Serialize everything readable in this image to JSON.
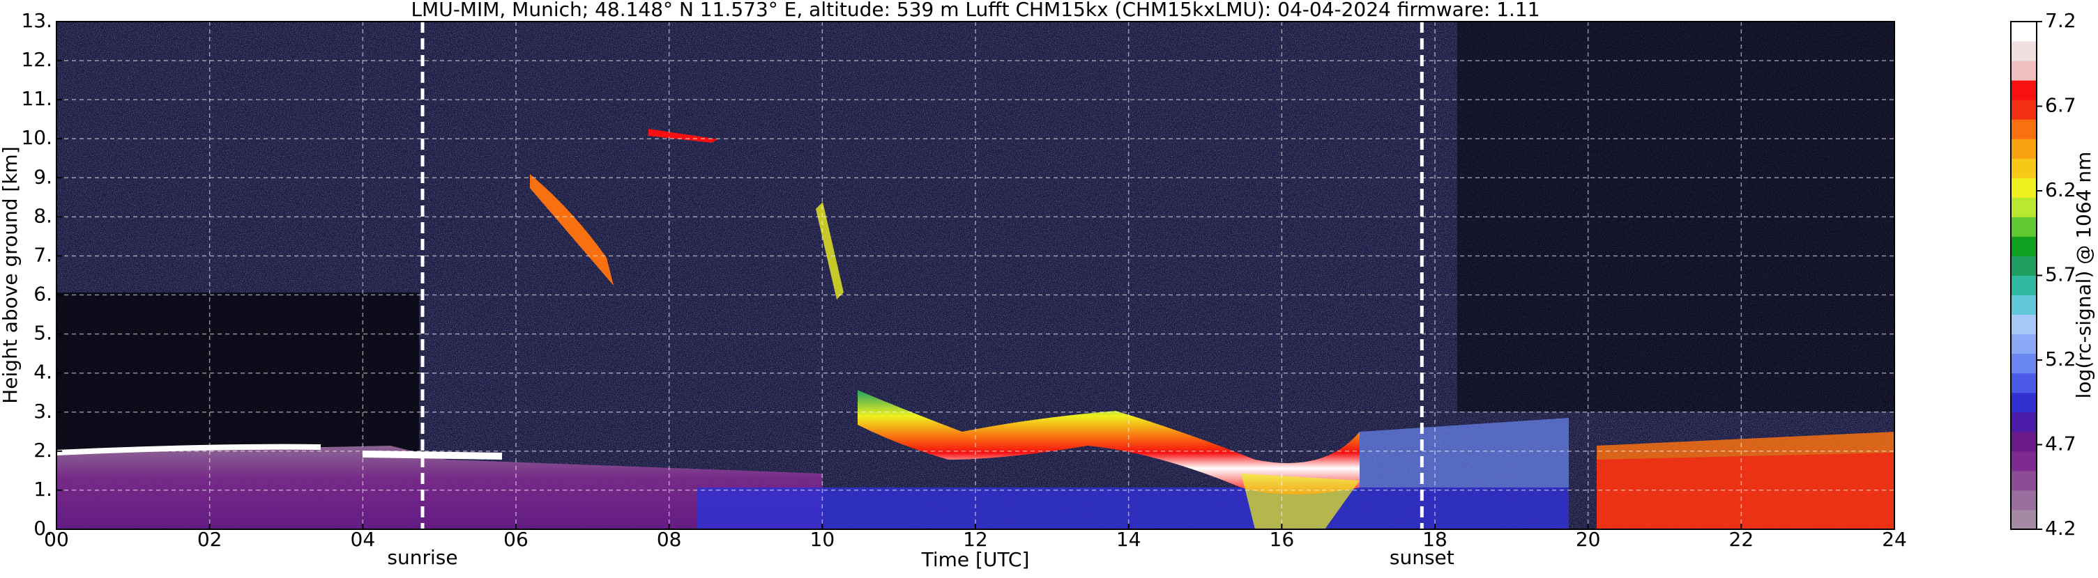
{
  "chart_data": {
    "type": "heatmap",
    "title": "LMU-MIM, Munich; 48.148° N 11.573° E, altitude: 539 m    Lufft CHM15kx (CHM15kxLMU): 04-04-2024    firmware: 1.11",
    "x_label": "Time [UTC]",
    "y_label": "Height above ground [km]",
    "xlim": [
      0,
      24
    ],
    "xticks": [
      {
        "value": 0,
        "label": "00"
      },
      {
        "value": 2,
        "label": "02"
      },
      {
        "value": 4,
        "label": "04"
      },
      {
        "value": 6,
        "label": "06"
      },
      {
        "value": 8,
        "label": "08"
      },
      {
        "value": 10,
        "label": "10"
      },
      {
        "value": 12,
        "label": "12"
      },
      {
        "value": 14,
        "label": "14"
      },
      {
        "value": 16,
        "label": "16"
      },
      {
        "value": 18,
        "label": "18"
      },
      {
        "value": 20,
        "label": "20"
      },
      {
        "value": 22,
        "label": "22"
      },
      {
        "value": 24,
        "label": "24"
      }
    ],
    "ylim": [
      0,
      13
    ],
    "yticks": [
      {
        "value": 0,
        "label": "0."
      },
      {
        "value": 1,
        "label": "1."
      },
      {
        "value": 2,
        "label": "2."
      },
      {
        "value": 3,
        "label": "3."
      },
      {
        "value": 4,
        "label": "4."
      },
      {
        "value": 5,
        "label": "5."
      },
      {
        "value": 6,
        "label": "6."
      },
      {
        "value": 7,
        "label": "7."
      },
      {
        "value": 8,
        "label": "8."
      },
      {
        "value": 9,
        "label": "9."
      },
      {
        "value": 10,
        "label": "10."
      },
      {
        "value": 11,
        "label": "11."
      },
      {
        "value": 12,
        "label": "12."
      },
      {
        "value": 13,
        "label": "13."
      }
    ],
    "grid": true,
    "annotations": [
      {
        "text": "sunrise",
        "x": 4.78
      },
      {
        "text": "sunset",
        "x": 17.83
      }
    ],
    "colorbar": {
      "label": "log(rc-signal) @ 1064 nm",
      "lim": [
        4.2,
        7.2
      ],
      "ticks": [
        4.2,
        4.7,
        5.2,
        5.7,
        6.2,
        6.7,
        7.2
      ],
      "colors": [
        "#a58aa5",
        "#9a6e9e",
        "#8c4c96",
        "#7e2a8e",
        "#6a1a8a",
        "#4a1aa8",
        "#3030d0",
        "#4a5ae6",
        "#6a86f2",
        "#8aaaf8",
        "#a8c8fa",
        "#60c8d8",
        "#30b8a0",
        "#20a060",
        "#10a020",
        "#60c830",
        "#b8e830",
        "#f0f020",
        "#f8c818",
        "#f8a010",
        "#f87010",
        "#f03010",
        "#f81010",
        "#f0c0c0",
        "#f0e0e0",
        "#ffffff"
      ]
    }
  }
}
